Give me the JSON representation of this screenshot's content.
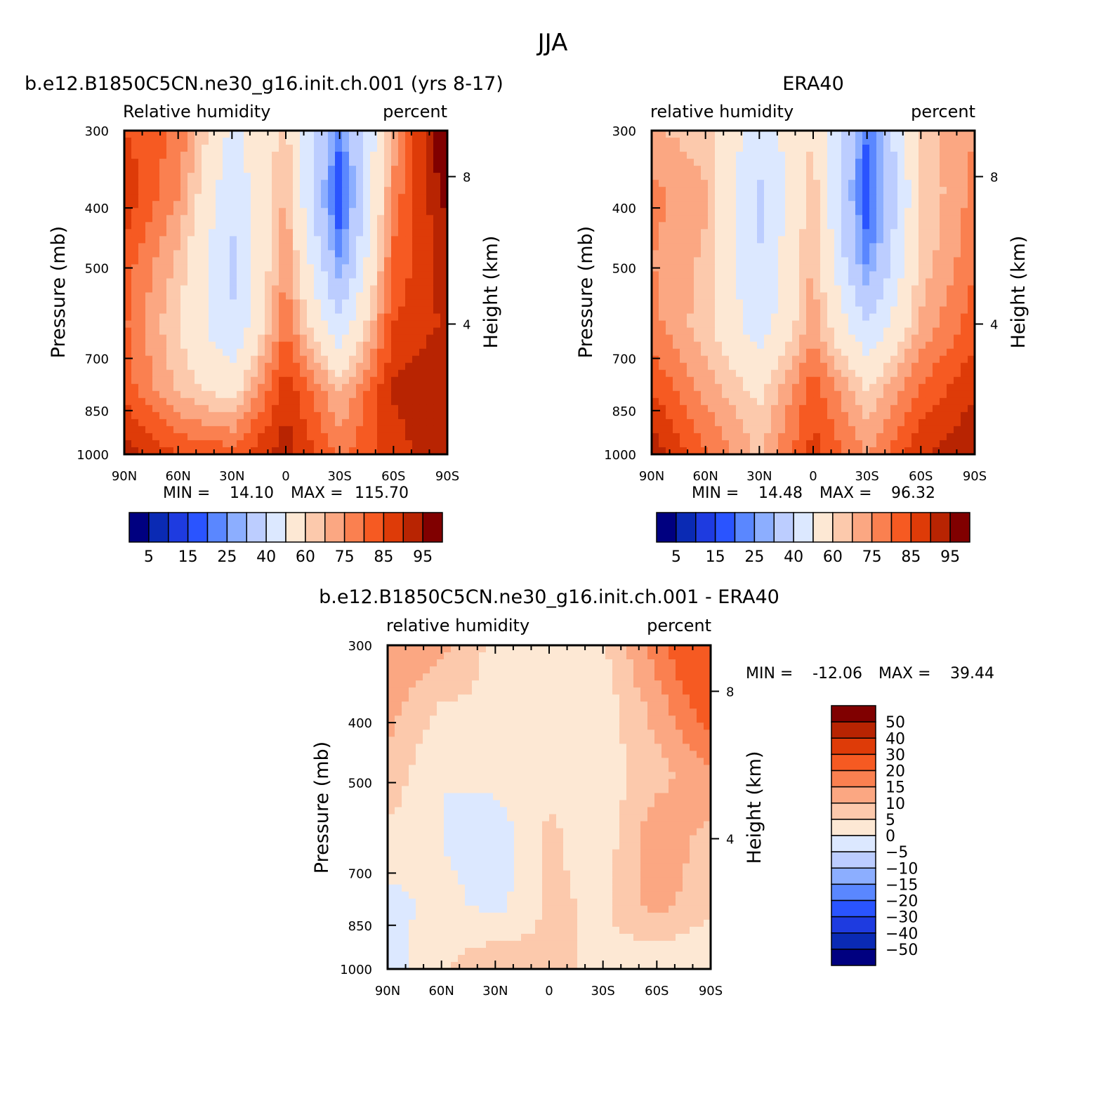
{
  "figure": {
    "title": "JJA"
  },
  "chart_data": [
    {
      "type": "heatmap",
      "panel_title": "b.e12.B1850C5CN.ne30_g16.init.ch.001 (yrs 8-17)",
      "left_label": "Relative humidity",
      "right_label": "percent",
      "xlabel": "",
      "ylabel": "Pressure (mb)",
      "ylabel_right": "Height (km)",
      "x_ticks": [
        "90N",
        "60N",
        "30N",
        "0",
        "30S",
        "60S",
        "90S"
      ],
      "y_ticks": [
        "300",
        "400",
        "500",
        "700",
        "850",
        "1000"
      ],
      "y_ticks_right": [
        "8",
        "4"
      ],
      "x": [
        -90,
        -60,
        -30,
        0,
        30,
        60,
        90
      ],
      "y": [
        300,
        400,
        500,
        700,
        850,
        1000
      ],
      "ylim": [
        1000,
        300
      ],
      "min_label": "MIN =",
      "min_value": "14.10",
      "max_label": "MAX =",
      "max_value": "115.70",
      "z": [
        [
          80,
          74,
          48,
          62,
          22,
          66,
          100
        ],
        [
          84,
          70,
          42,
          66,
          14,
          72,
          92
        ],
        [
          78,
          64,
          38,
          70,
          24,
          76,
          88
        ],
        [
          76,
          60,
          40,
          74,
          42,
          80,
          86
        ],
        [
          78,
          64,
          56,
          84,
          64,
          86,
          90
        ],
        [
          88,
          80,
          78,
          88,
          74,
          82,
          90
        ]
      ],
      "mask_note": "",
      "colorbar": {
        "colors": [
          "#000080",
          "#0a2ab4",
          "#1e3be0",
          "#2a54ff",
          "#5a87ff",
          "#8caeff",
          "#bccdff",
          "#dce8ff",
          "#fde8d4",
          "#fcc9ac",
          "#fba782",
          "#fa8050",
          "#f65a22",
          "#de3b08",
          "#b82402",
          "#800000"
        ],
        "labels": [
          "5",
          "15",
          "25",
          "40",
          "60",
          "75",
          "85",
          "95"
        ],
        "levels": [
          5,
          10,
          15,
          20,
          25,
          30,
          40,
          50,
          60,
          65,
          70,
          75,
          80,
          85,
          90,
          95
        ]
      }
    },
    {
      "type": "heatmap",
      "panel_title": "ERA40",
      "left_label": "relative humidity",
      "right_label": "percent",
      "xlabel": "",
      "ylabel": "Pressure (mb)",
      "ylabel_right": "Height (km)",
      "x_ticks": [
        "90N",
        "60N",
        "30N",
        "0",
        "30S",
        "60S",
        "90S"
      ],
      "y_ticks": [
        "300",
        "400",
        "500",
        "700",
        "850",
        "1000"
      ],
      "y_ticks_right": [
        "8",
        "4"
      ],
      "x": [
        -90,
        -60,
        -30,
        0,
        30,
        60,
        90
      ],
      "y": [
        300,
        400,
        500,
        700,
        850,
        1000
      ],
      "ylim": [
        1000,
        300
      ],
      "min_label": "MIN =",
      "min_value": "14.48",
      "max_label": "MAX =",
      "max_value": "96.32",
      "z": [
        [
          66,
          62,
          44,
          60,
          20,
          62,
          70
        ],
        [
          72,
          66,
          38,
          64,
          16,
          60,
          72
        ],
        [
          70,
          64,
          40,
          66,
          22,
          62,
          74
        ],
        [
          72,
          62,
          44,
          68,
          40,
          66,
          78
        ],
        [
          80,
          68,
          58,
          78,
          60,
          76,
          84
        ],
        [
          88,
          76,
          64,
          82,
          70,
          84,
          90
        ]
      ],
      "colorbar": {
        "colors": [
          "#000080",
          "#0a2ab4",
          "#1e3be0",
          "#2a54ff",
          "#5a87ff",
          "#8caeff",
          "#bccdff",
          "#dce8ff",
          "#fde8d4",
          "#fcc9ac",
          "#fba782",
          "#fa8050",
          "#f65a22",
          "#de3b08",
          "#b82402",
          "#800000"
        ],
        "labels": [
          "5",
          "15",
          "25",
          "40",
          "60",
          "75",
          "85",
          "95"
        ],
        "levels": [
          5,
          10,
          15,
          20,
          25,
          30,
          40,
          50,
          60,
          65,
          70,
          75,
          80,
          85,
          90,
          95
        ]
      }
    },
    {
      "type": "heatmap",
      "panel_title": "b.e12.B1850C5CN.ne30_g16.init.ch.001 - ERA40",
      "left_label": "relative humidity",
      "right_label": "percent",
      "xlabel": "",
      "ylabel": "Pressure (mb)",
      "ylabel_right": "Height (km)",
      "x_ticks": [
        "90N",
        "60N",
        "30N",
        "0",
        "30S",
        "60S",
        "90S"
      ],
      "y_ticks": [
        "300",
        "400",
        "500",
        "700",
        "850",
        "1000"
      ],
      "y_ticks_right": [
        "8",
        "4"
      ],
      "x": [
        -90,
        -60,
        -30,
        0,
        30,
        60,
        90
      ],
      "y": [
        300,
        400,
        500,
        700,
        850,
        1000
      ],
      "ylim": [
        1000,
        300
      ],
      "min_label": "MIN =",
      "min_value": "-12.06",
      "max_label": "MAX =",
      "max_value": "39.44",
      "z": [
        [
          14,
          12,
          3,
          2,
          4,
          18,
          30
        ],
        [
          12,
          4,
          4,
          2,
          2,
          12,
          24
        ],
        [
          8,
          0,
          2,
          4,
          2,
          8,
          14
        ],
        [
          4,
          0,
          -4,
          6,
          2,
          14,
          8
        ],
        [
          -2,
          2,
          -2,
          6,
          4,
          12,
          6
        ],
        [
          -2,
          4,
          10,
          6,
          4,
          0,
          0
        ]
      ],
      "colorbar": {
        "colors": [
          "#000080",
          "#0a2ab4",
          "#1e3be0",
          "#2a54ff",
          "#5a87ff",
          "#8caeff",
          "#bccdff",
          "#dce8ff",
          "#fde8d4",
          "#fcc9ac",
          "#fba782",
          "#fa8050",
          "#f65a22",
          "#de3b08",
          "#b82402",
          "#800000"
        ],
        "labels": [
          "50",
          "40",
          "30",
          "20",
          "15",
          "10",
          "5",
          "0",
          "-5",
          "-10",
          "-15",
          "-20",
          "-30",
          "-40",
          "-50"
        ],
        "levels": [
          -50,
          -40,
          -30,
          -20,
          -15,
          -10,
          -5,
          0,
          5,
          10,
          15,
          20,
          30,
          40,
          50
        ]
      }
    }
  ]
}
